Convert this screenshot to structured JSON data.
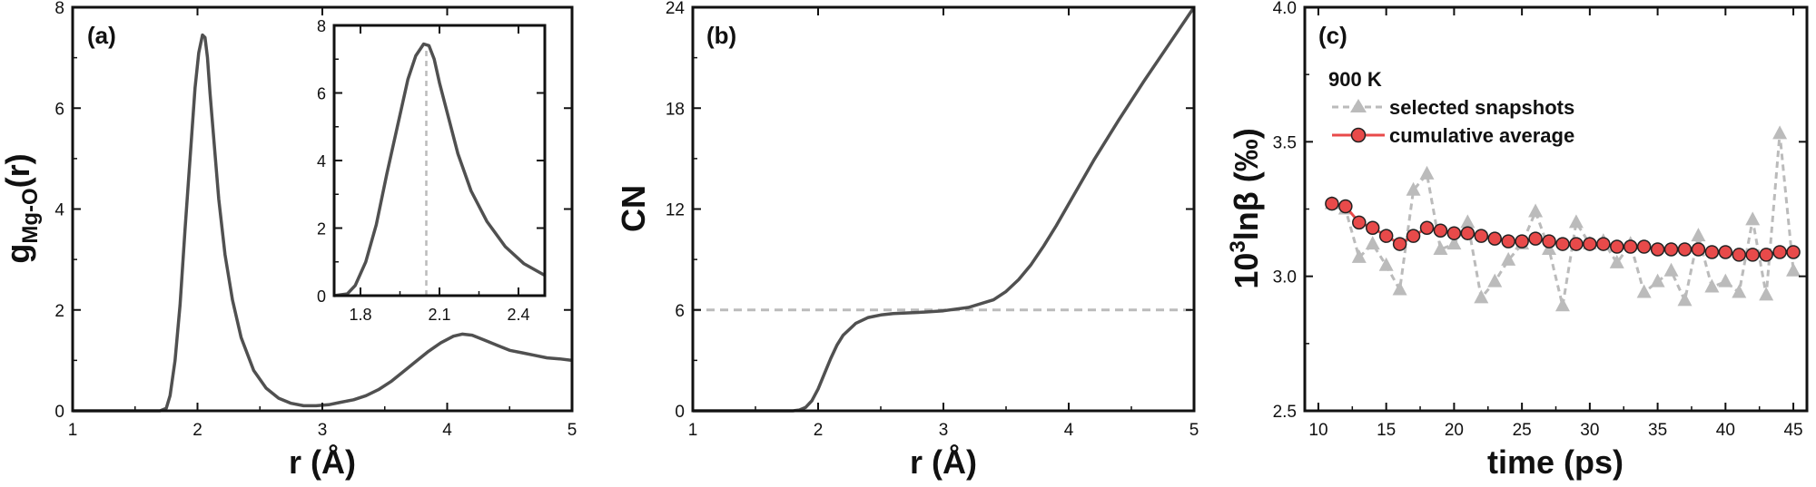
{
  "chart_data": [
    {
      "panel": "(a)",
      "type": "line",
      "xlabel": "r (Å)",
      "ylabel": {
        "main": "g",
        "sub": "Mg-O",
        "tail": "(r)"
      },
      "xlim": [
        1,
        5
      ],
      "ylim": [
        0,
        8
      ],
      "xticks": [
        1,
        2,
        3,
        4,
        5
      ],
      "yticks": [
        0,
        2,
        4,
        6,
        8
      ],
      "series": [
        {
          "color": "#505050",
          "x": [
            1.0,
            1.7,
            1.75,
            1.78,
            1.82,
            1.86,
            1.9,
            1.94,
            1.98,
            2.01,
            2.04,
            2.06,
            2.08,
            2.1,
            2.13,
            2.17,
            2.22,
            2.28,
            2.35,
            2.45,
            2.55,
            2.65,
            2.75,
            2.85,
            2.95,
            3.05,
            3.15,
            3.25,
            3.35,
            3.45,
            3.55,
            3.65,
            3.75,
            3.85,
            3.95,
            4.05,
            4.12,
            4.2,
            4.3,
            4.4,
            4.5,
            4.6,
            4.7,
            4.8,
            4.9,
            5.0
          ],
          "y": [
            0.0,
            0.0,
            0.05,
            0.3,
            1.0,
            2.1,
            3.6,
            5.0,
            6.4,
            7.1,
            7.45,
            7.4,
            7.0,
            6.3,
            5.4,
            4.2,
            3.1,
            2.2,
            1.45,
            0.8,
            0.45,
            0.25,
            0.15,
            0.1,
            0.1,
            0.12,
            0.17,
            0.22,
            0.3,
            0.42,
            0.58,
            0.78,
            0.98,
            1.18,
            1.35,
            1.48,
            1.52,
            1.5,
            1.4,
            1.3,
            1.2,
            1.15,
            1.1,
            1.05,
            1.03,
            1.0
          ]
        }
      ],
      "inset": {
        "xlim": [
          1.7,
          2.5
        ],
        "ylim": [
          0,
          8
        ],
        "xticks": [
          "1.8",
          "2.1",
          "2.4"
        ],
        "yticks": [
          0,
          2,
          4,
          6,
          8
        ],
        "peak_x": 2.05,
        "line_color": "#505050",
        "marker_color": "#bbbbbb",
        "x": [
          1.7,
          1.75,
          1.78,
          1.82,
          1.86,
          1.9,
          1.94,
          1.98,
          2.01,
          2.04,
          2.06,
          2.08,
          2.1,
          2.13,
          2.17,
          2.22,
          2.28,
          2.35,
          2.42,
          2.5
        ],
        "y": [
          0.0,
          0.05,
          0.3,
          1.0,
          2.1,
          3.6,
          5.0,
          6.4,
          7.1,
          7.45,
          7.4,
          7.0,
          6.3,
          5.4,
          4.2,
          3.1,
          2.2,
          1.45,
          0.95,
          0.6
        ]
      }
    },
    {
      "panel": "(b)",
      "type": "line",
      "xlabel": "r (Å)",
      "ylabel": "CN",
      "xlim": [
        1,
        5
      ],
      "ylim": [
        0,
        24
      ],
      "xticks": [
        1,
        2,
        3,
        4,
        5
      ],
      "yticks": [
        0,
        6,
        12,
        18,
        24
      ],
      "reference_y": 6,
      "reference_color": "#bbbbbb",
      "series": [
        {
          "color": "#505050",
          "x": [
            1.0,
            1.8,
            1.85,
            1.9,
            1.95,
            2.0,
            2.05,
            2.1,
            2.15,
            2.2,
            2.3,
            2.4,
            2.5,
            2.6,
            2.8,
            3.0,
            3.2,
            3.4,
            3.5,
            3.6,
            3.7,
            3.8,
            3.9,
            4.0,
            4.2,
            4.4,
            4.6,
            4.8,
            5.0
          ],
          "y": [
            0.0,
            0.0,
            0.05,
            0.2,
            0.6,
            1.3,
            2.2,
            3.1,
            3.9,
            4.5,
            5.2,
            5.55,
            5.7,
            5.78,
            5.85,
            5.95,
            6.15,
            6.6,
            7.1,
            7.8,
            8.7,
            9.8,
            11.0,
            12.3,
            14.9,
            17.3,
            19.6,
            21.8,
            24.0
          ]
        }
      ]
    },
    {
      "panel": "(c)",
      "type": "line",
      "xlabel": "time (ps)",
      "ylabel": {
        "pre": "10",
        "sup": "3",
        "tail": "lnβ (‰)"
      },
      "xlim": [
        9,
        46
      ],
      "ylim": [
        2.5,
        4.0
      ],
      "xticks": [
        10,
        15,
        20,
        25,
        30,
        35,
        40,
        45
      ],
      "yticks": [
        "2.5",
        "3.0",
        "3.5",
        "4.0"
      ],
      "legend_title": "900 K",
      "legend_position": "top-left",
      "series": [
        {
          "name": "selected snapshots",
          "color": "#bbbbbb",
          "marker": "triangle",
          "x": [
            11,
            12,
            13,
            14,
            15,
            16,
            17,
            18,
            19,
            20,
            21,
            22,
            23,
            24,
            25,
            26,
            27,
            28,
            29,
            30,
            31,
            32,
            33,
            34,
            35,
            36,
            37,
            38,
            39,
            40,
            41,
            42,
            43,
            44,
            45
          ],
          "y": [
            3.27,
            3.25,
            3.07,
            3.12,
            3.04,
            2.95,
            3.32,
            3.38,
            3.1,
            3.12,
            3.2,
            2.92,
            2.98,
            3.06,
            3.12,
            3.24,
            3.1,
            2.89,
            3.2,
            3.12,
            3.13,
            3.05,
            3.12,
            2.94,
            2.98,
            3.02,
            2.91,
            3.15,
            2.96,
            2.98,
            2.94,
            3.21,
            2.93,
            3.53,
            3.02
          ]
        },
        {
          "name": "cumulative average",
          "color": "#e84a4a",
          "marker": "circle",
          "x": [
            11,
            12,
            13,
            14,
            15,
            16,
            17,
            18,
            19,
            20,
            21,
            22,
            23,
            24,
            25,
            26,
            27,
            28,
            29,
            30,
            31,
            32,
            33,
            34,
            35,
            36,
            37,
            38,
            39,
            40,
            41,
            42,
            43,
            44,
            45
          ],
          "y": [
            3.27,
            3.26,
            3.2,
            3.18,
            3.15,
            3.12,
            3.15,
            3.18,
            3.17,
            3.16,
            3.16,
            3.15,
            3.14,
            3.13,
            3.13,
            3.14,
            3.13,
            3.12,
            3.12,
            3.12,
            3.12,
            3.11,
            3.11,
            3.11,
            3.1,
            3.1,
            3.1,
            3.1,
            3.09,
            3.09,
            3.08,
            3.08,
            3.08,
            3.09,
            3.09
          ]
        }
      ]
    }
  ]
}
